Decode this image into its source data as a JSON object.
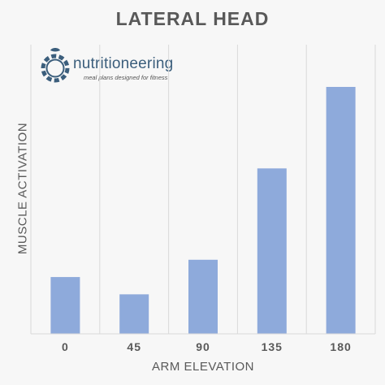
{
  "chart_data": {
    "type": "bar",
    "title": "LATERAL HEAD",
    "xlabel": "ARM ELEVATION",
    "ylabel": "MUSCLE ACTIVATION",
    "categories": [
      "0",
      "45",
      "90",
      "135",
      "180"
    ],
    "values": [
      23,
      16,
      30,
      67,
      100
    ],
    "ylim": [
      0,
      100
    ],
    "y_ticks_visible": false,
    "grid": "vertical",
    "colors": {
      "bar": "#8eaadb",
      "grid": "#d9d9d9",
      "background": "#f7f7f7"
    }
  },
  "logo": {
    "name": "nutritioneering",
    "tagline": "meal plans designed for fitness",
    "icon": "apple-gear-icon",
    "color": "#3b5e7c"
  }
}
